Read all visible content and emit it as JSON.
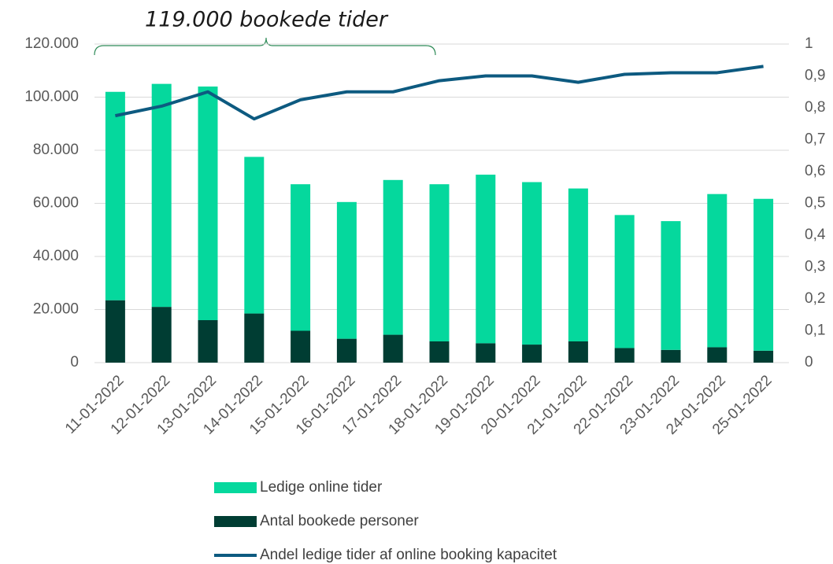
{
  "chart_data": {
    "type": "bar",
    "annotation": "119.000 bookede tider",
    "categories": [
      "11-01-2022",
      "12-01-2022",
      "13-01-2022",
      "14-01-2022",
      "15-01-2022",
      "16-01-2022",
      "17-01-2022",
      "18-01-2022",
      "19-01-2022",
      "20-01-2022",
      "21-01-2022",
      "22-01-2022",
      "23-01-2022",
      "24-01-2022",
      "25-01-2022"
    ],
    "stacked": true,
    "series": [
      {
        "name": "Ledige online tider",
        "color": "#05d89d",
        "axis": "y",
        "values": [
          78500,
          84000,
          88000,
          59000,
          55200,
          51500,
          58300,
          59200,
          63500,
          61200,
          57600,
          50100,
          48500,
          57700,
          57200
        ]
      },
      {
        "name": "Antal bookede personer",
        "color": "#003d33",
        "axis": "y",
        "values": [
          23500,
          21000,
          16000,
          18500,
          12000,
          9000,
          10500,
          8000,
          7300,
          6800,
          8000,
          5500,
          4800,
          5800,
          4500
        ]
      },
      {
        "name": "Andel ledige tider af online booking kapacitet",
        "color": "#0d5a80",
        "axis": "y2",
        "type": "line",
        "values": [
          0.775,
          0.805,
          0.85,
          0.765,
          0.825,
          0.85,
          0.85,
          0.885,
          0.9,
          0.9,
          0.88,
          0.905,
          0.91,
          0.91,
          0.93
        ]
      }
    ],
    "ylim": [
      0,
      120000
    ],
    "yticks": [
      0,
      {
        "value": 20000,
        "label": "20.000"
      },
      {
        "value": 40000,
        "label": "40.000"
      },
      {
        "value": 60000,
        "label": "60.000"
      },
      {
        "value": 80000,
        "label": "80.000"
      },
      {
        "value": 100000,
        "label": "100.000"
      },
      {
        "value": 120000,
        "label": "120.000"
      }
    ],
    "y2lim": [
      0,
      1
    ],
    "y2ticks": [
      0,
      {
        "value": 0.1,
        "label": "0,1"
      },
      {
        "value": 0.2,
        "label": "0,2"
      },
      {
        "value": 0.3,
        "label": "0,3"
      },
      {
        "value": 0.4,
        "label": "0,4"
      },
      {
        "value": 0.5,
        "label": "0,5"
      },
      {
        "value": 0.6,
        "label": "0,6"
      },
      {
        "value": 0.7,
        "label": "0,7"
      },
      {
        "value": 0.8,
        "label": "0,8"
      },
      {
        "value": 0.9,
        "label": "0,9"
      },
      1
    ],
    "grid": true,
    "legend": "bottom"
  }
}
